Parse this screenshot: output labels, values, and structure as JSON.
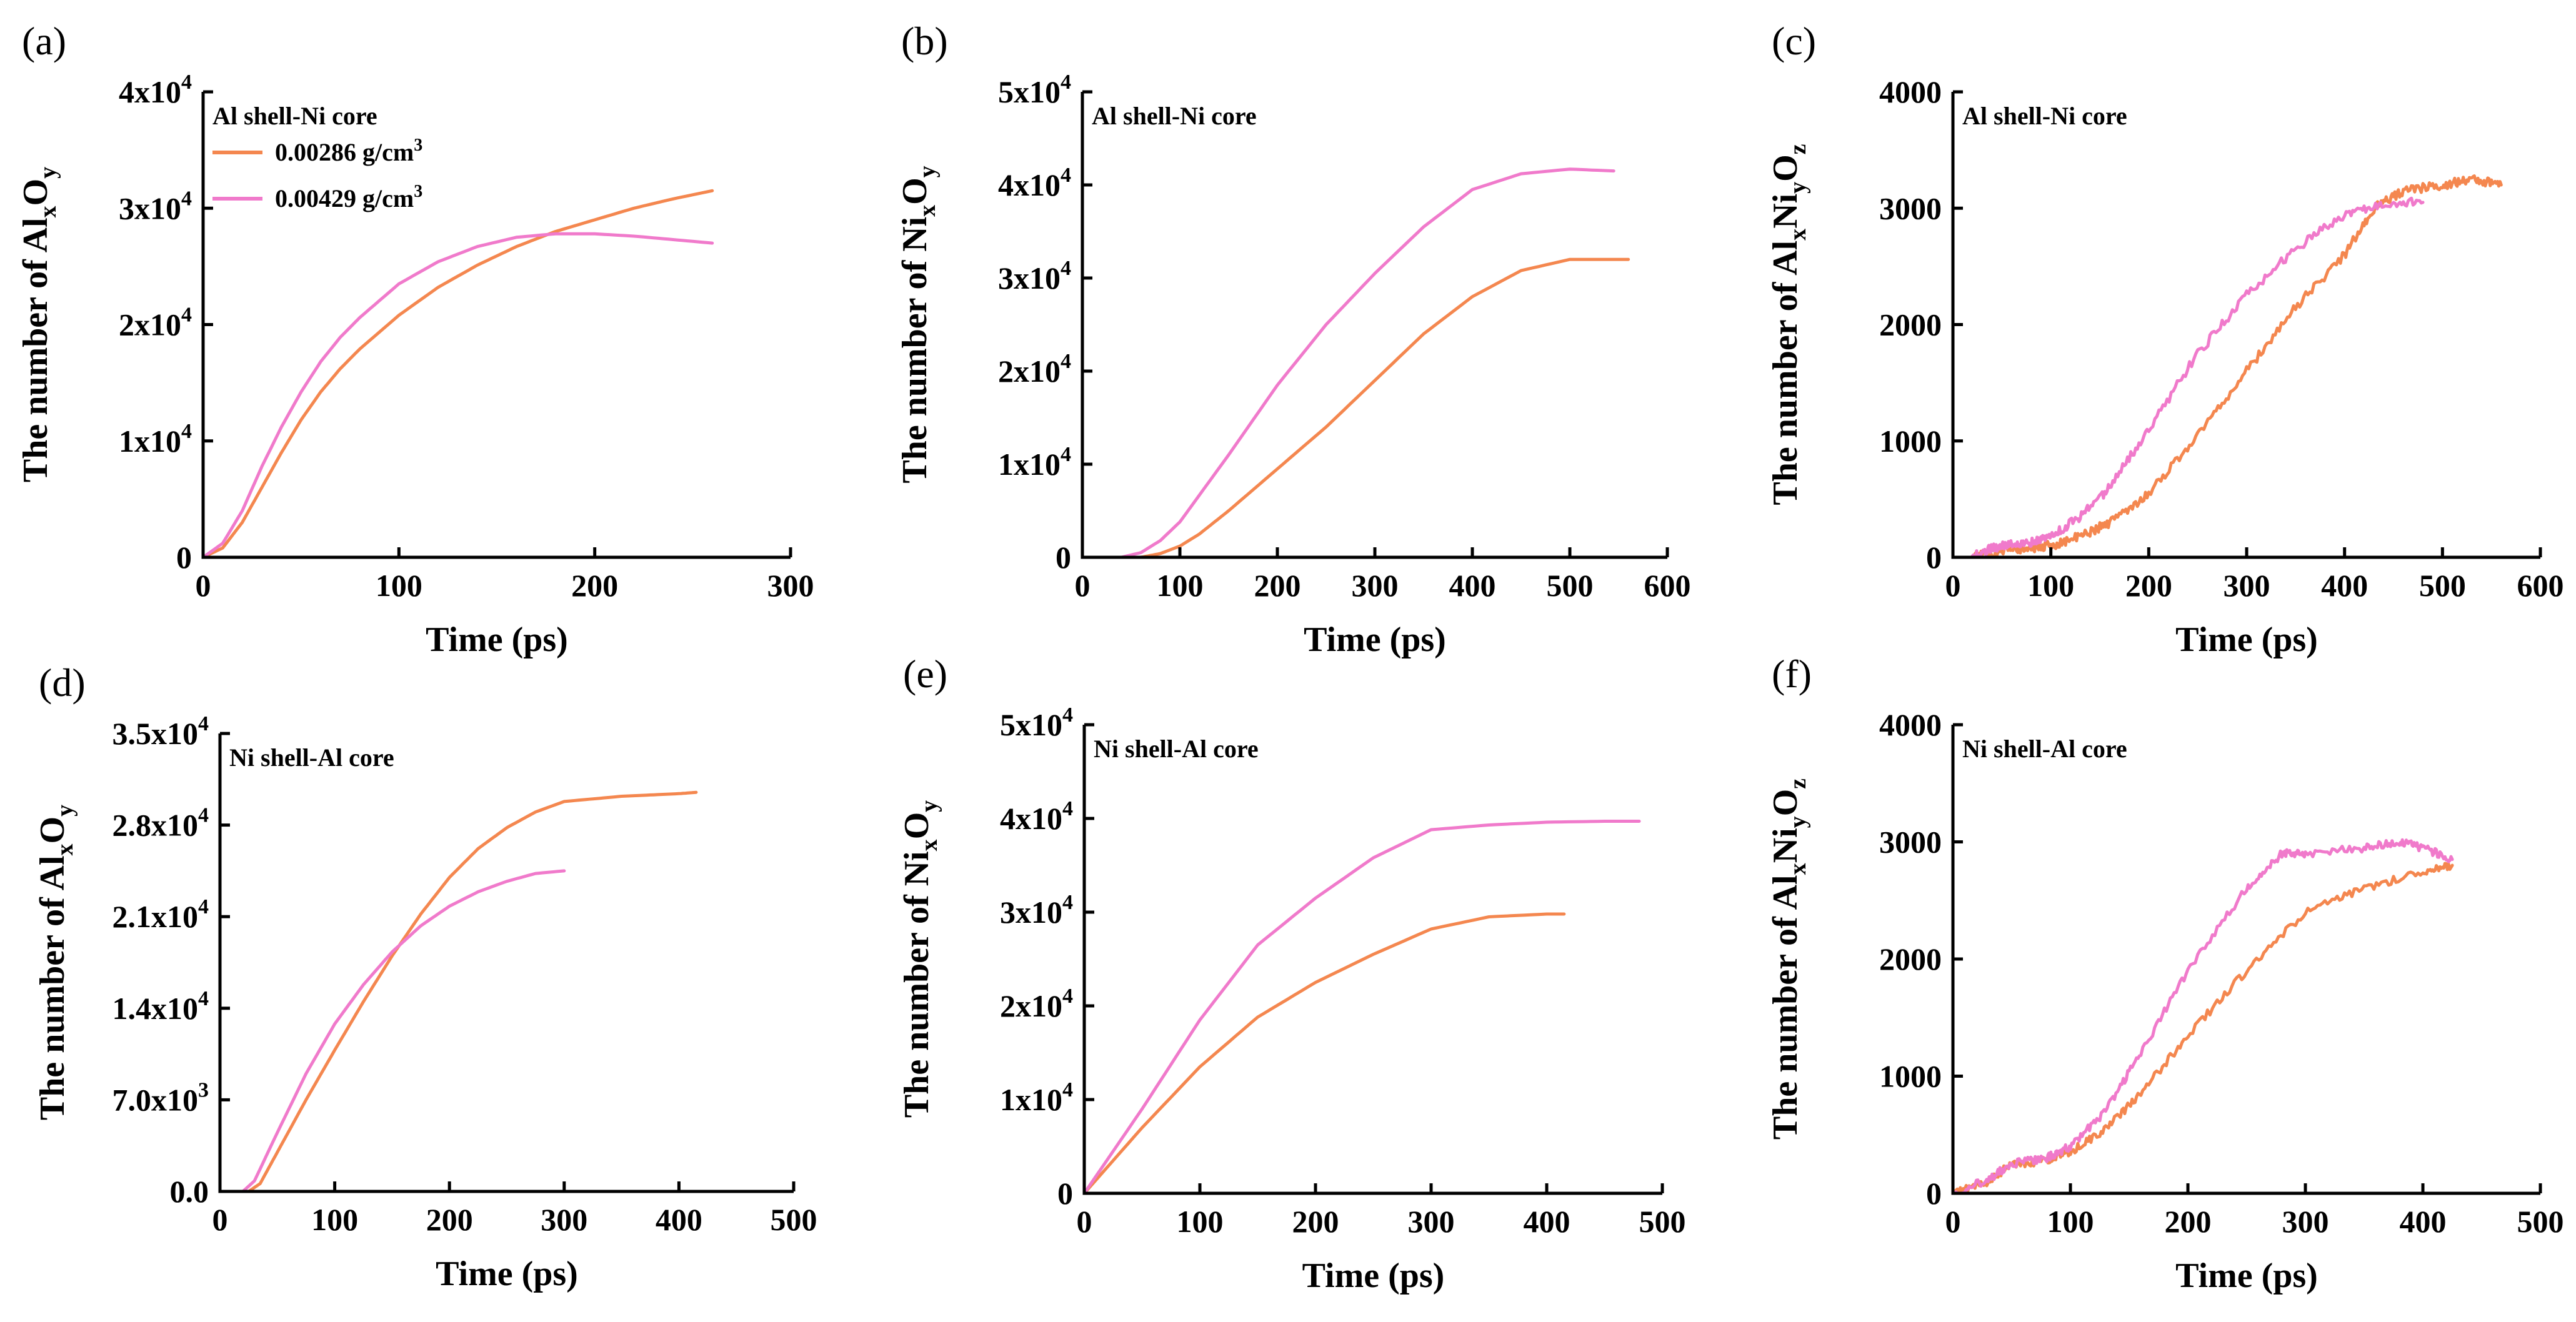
{
  "figure": {
    "title": ""
  },
  "colors": {
    "series_a": "#F4874F",
    "series_b": "#F07ACB",
    "axis": "#000000"
  },
  "legend": {
    "entries": [
      {
        "name": "0.00286 g/cm³",
        "color": "#F4874F"
      },
      {
        "name": "0.00429 g/cm³",
        "color": "#F07ACB"
      }
    ]
  },
  "chart_data": [
    {
      "panel": "(a)",
      "type": "line",
      "annotation": "Al shell-Ni core",
      "xlabel": "Time (ps)",
      "ylabel_parts": [
        "The number of Al",
        "x",
        "O",
        "y"
      ],
      "xlim": [
        0,
        300
      ],
      "ylim": [
        0,
        40000
      ],
      "xticks": [
        0,
        100,
        200,
        300
      ],
      "yticks": [
        0,
        10000,
        20000,
        30000,
        40000
      ],
      "ytick_labels": [
        "0",
        "1x10^4",
        "2x10^4",
        "3x10^4",
        "4x10^4"
      ],
      "legend_location": "top-left",
      "series": [
        {
          "name": "0.00286 g/cm³",
          "color": "#F4874F",
          "noise": 0,
          "x": [
            0,
            10,
            20,
            30,
            40,
            50,
            60,
            70,
            80,
            100,
            120,
            140,
            160,
            180,
            200,
            220,
            240,
            260
          ],
          "y": [
            0,
            800,
            3000,
            6000,
            9000,
            11800,
            14200,
            16200,
            17900,
            20800,
            23200,
            25100,
            26700,
            28000,
            29000,
            30000,
            30800,
            31500
          ]
        },
        {
          "name": "0.00429 g/cm³",
          "color": "#F07ACB",
          "noise": 0,
          "x": [
            0,
            10,
            20,
            30,
            40,
            50,
            60,
            70,
            80,
            100,
            120,
            140,
            160,
            180,
            200,
            220,
            240,
            260
          ],
          "y": [
            0,
            1200,
            4000,
            7800,
            11200,
            14200,
            16800,
            18900,
            20600,
            23500,
            25400,
            26700,
            27500,
            27800,
            27800,
            27600,
            27300,
            27000
          ]
        }
      ]
    },
    {
      "panel": "(b)",
      "type": "line",
      "annotation": "Al shell-Ni core",
      "xlabel": "Time (ps)",
      "ylabel_parts": [
        "The number of Ni",
        "x",
        "O",
        "y"
      ],
      "xlim": [
        0,
        600
      ],
      "ylim": [
        0,
        50000
      ],
      "xticks": [
        0,
        100,
        200,
        300,
        400,
        500,
        600
      ],
      "yticks": [
        0,
        10000,
        20000,
        30000,
        40000,
        50000
      ],
      "ytick_labels": [
        "0",
        "1x10^4",
        "2x10^4",
        "3x10^4",
        "4x10^4",
        "5x10^4"
      ],
      "series": [
        {
          "name": "0.00286 g/cm³",
          "color": "#F4874F",
          "noise": 0,
          "x": [
            0,
            60,
            80,
            100,
            120,
            150,
            200,
            250,
            300,
            350,
            400,
            450,
            500,
            540,
            560
          ],
          "y": [
            0,
            0,
            400,
            1200,
            2500,
            5000,
            9500,
            14000,
            19000,
            24000,
            28000,
            30800,
            32000,
            32000,
            32000
          ]
        },
        {
          "name": "0.00429 g/cm³",
          "color": "#F07ACB",
          "noise": 0,
          "x": [
            0,
            40,
            60,
            80,
            100,
            150,
            200,
            250,
            300,
            350,
            400,
            450,
            500,
            545
          ],
          "y": [
            0,
            0,
            500,
            1800,
            3800,
            11000,
            18500,
            25000,
            30500,
            35500,
            39500,
            41200,
            41700,
            41500
          ]
        }
      ]
    },
    {
      "panel": "(c)",
      "type": "line",
      "annotation": "Al shell-Ni core",
      "xlabel": "Time (ps)",
      "ylabel_parts": [
        "The number of Al",
        "x",
        "Ni",
        "y",
        "O",
        "z"
      ],
      "xlim": [
        0,
        600
      ],
      "ylim": [
        0,
        4000
      ],
      "xticks": [
        0,
        100,
        200,
        300,
        400,
        500,
        600
      ],
      "yticks": [
        0,
        1000,
        2000,
        3000,
        4000
      ],
      "ytick_labels": [
        "0",
        "1000",
        "2000",
        "3000",
        "4000"
      ],
      "series": [
        {
          "name": "0.00286 g/cm³",
          "color": "#F4874F",
          "noise": 40,
          "x": [
            20,
            50,
            80,
            100,
            130,
            160,
            200,
            250,
            300,
            350,
            400,
            430,
            460,
            500,
            530,
            560
          ],
          "y": [
            0,
            60,
            80,
            100,
            180,
            300,
            550,
            1050,
            1600,
            2150,
            2600,
            3000,
            3150,
            3200,
            3250,
            3200
          ]
        },
        {
          "name": "0.00429 g/cm³",
          "color": "#F07ACB",
          "noise": 40,
          "x": [
            20,
            40,
            60,
            80,
            100,
            130,
            160,
            200,
            250,
            300,
            350,
            400,
            440,
            480
          ],
          "y": [
            0,
            80,
            120,
            130,
            180,
            350,
            600,
            1100,
            1750,
            2250,
            2650,
            2950,
            3050,
            3050
          ]
        }
      ]
    },
    {
      "panel": "(d)",
      "type": "line",
      "annotation": "Ni shell-Al core",
      "xlabel": "Time (ps)",
      "ylabel_parts": [
        "The number of Al",
        "x",
        "O",
        "y"
      ],
      "xlim": [
        0,
        500
      ],
      "ylim": [
        0,
        35000
      ],
      "xticks": [
        0,
        100,
        200,
        300,
        400,
        500
      ],
      "yticks": [
        0,
        7000,
        14000,
        21000,
        28000,
        35000
      ],
      "ytick_labels": [
        "0.0",
        "7.0x10^3",
        "1.4x10^4",
        "2.1x10^4",
        "2.8x10^4",
        "3.5x10^4"
      ],
      "series": [
        {
          "name": "0.00286 g/cm³",
          "color": "#F4874F",
          "noise": 0,
          "x": [
            0,
            25,
            35,
            50,
            75,
            100,
            125,
            150,
            175,
            200,
            225,
            250,
            275,
            300,
            325,
            350,
            375,
            400,
            415
          ],
          "y": [
            0,
            0,
            600,
            3000,
            7000,
            10800,
            14500,
            18000,
            21200,
            24000,
            26200,
            27800,
            29000,
            29800,
            30000,
            30200,
            30300,
            30400,
            30500
          ]
        },
        {
          "name": "0.00429 g/cm³",
          "color": "#F07ACB",
          "noise": 0,
          "x": [
            0,
            20,
            30,
            50,
            75,
            100,
            125,
            150,
            175,
            200,
            225,
            250,
            275,
            300
          ],
          "y": [
            0,
            0,
            800,
            4500,
            9000,
            12800,
            15800,
            18300,
            20300,
            21800,
            22900,
            23700,
            24300,
            24500
          ]
        }
      ]
    },
    {
      "panel": "(e)",
      "type": "line",
      "annotation": "Ni shell-Al core",
      "xlabel": "Time (ps)",
      "ylabel_parts": [
        "The number of Ni",
        "x",
        "O",
        "y"
      ],
      "xlim": [
        0,
        500
      ],
      "ylim": [
        0,
        50000
      ],
      "xticks": [
        0,
        100,
        200,
        300,
        400,
        500
      ],
      "yticks": [
        0,
        10000,
        20000,
        30000,
        40000,
        50000
      ],
      "ytick_labels": [
        "0",
        "1x10^4",
        "2x10^4",
        "3x10^4",
        "4x10^4",
        "5x10^4"
      ],
      "series": [
        {
          "name": "0.00286 g/cm³",
          "color": "#F4874F",
          "noise": 0,
          "x": [
            0,
            50,
            100,
            150,
            200,
            250,
            300,
            350,
            400,
            415
          ],
          "y": [
            0,
            7000,
            13500,
            18800,
            22500,
            25500,
            28200,
            29500,
            29800,
            29800
          ]
        },
        {
          "name": "0.00429 g/cm³",
          "color": "#F07ACB",
          "noise": 0,
          "x": [
            0,
            50,
            100,
            150,
            200,
            250,
            300,
            350,
            400,
            450,
            480
          ],
          "y": [
            0,
            9000,
            18500,
            26500,
            31500,
            35800,
            38800,
            39300,
            39600,
            39700,
            39700
          ]
        }
      ]
    },
    {
      "panel": "(f)",
      "type": "line",
      "annotation": "Ni shell-Al core",
      "xlabel": "Time (ps)",
      "ylabel_parts": [
        "The number of Al",
        "x",
        "Ni",
        "y",
        "O",
        "z"
      ],
      "xlim": [
        0,
        500
      ],
      "ylim": [
        0,
        4000
      ],
      "xticks": [
        0,
        100,
        200,
        300,
        400,
        500
      ],
      "yticks": [
        0,
        1000,
        2000,
        3000,
        4000
      ],
      "ytick_labels": [
        "0",
        "1000",
        "2000",
        "3000",
        "4000"
      ],
      "series": [
        {
          "name": "0.00286 g/cm³",
          "color": "#F4874F",
          "noise": 35,
          "x": [
            0,
            30,
            50,
            80,
            100,
            130,
            160,
            200,
            250,
            300,
            350,
            400,
            425
          ],
          "y": [
            0,
            100,
            250,
            280,
            350,
            550,
            850,
            1350,
            1900,
            2400,
            2600,
            2750,
            2800
          ]
        },
        {
          "name": "0.00429 g/cm³",
          "color": "#F07ACB",
          "noise": 35,
          "x": [
            0,
            30,
            50,
            80,
            100,
            130,
            160,
            200,
            250,
            280,
            300,
            350,
            380,
            400,
            425
          ],
          "y": [
            0,
            120,
            250,
            300,
            400,
            700,
            1200,
            1900,
            2600,
            2900,
            2900,
            2950,
            3000,
            2950,
            2850
          ]
        }
      ]
    }
  ]
}
